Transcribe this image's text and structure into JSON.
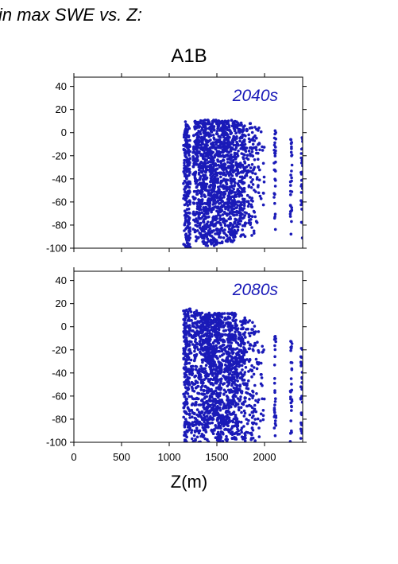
{
  "figure": {
    "title": "in max SWE vs. Z:",
    "scenario": "A1B",
    "xlabel": "Z(m)"
  },
  "chart_data": [
    {
      "type": "scatter",
      "panel_label": "2040s",
      "color": "#1a1ab8",
      "xlim": [
        0,
        2400
      ],
      "ylim": [
        -100,
        48
      ],
      "yticks": [
        40,
        20,
        0,
        -20,
        -40,
        -60,
        -80,
        -100
      ],
      "xticks": [
        0,
        500,
        1000,
        1500,
        2000
      ],
      "show_xtick_labels": false,
      "grid": false,
      "clusters": [
        {
          "x": [
            1150,
            1220
          ],
          "y": [
            -100,
            10
          ],
          "n": 220
        },
        {
          "x": [
            1250,
            1320
          ],
          "y": [
            -95,
            10
          ],
          "n": 180
        },
        {
          "x": [
            1320,
            1560
          ],
          "y": [
            -98,
            11
          ],
          "n": 700
        },
        {
          "x": [
            1560,
            1700
          ],
          "y": [
            -95,
            11
          ],
          "n": 380
        },
        {
          "x": [
            1700,
            1800
          ],
          "y": [
            -90,
            10
          ],
          "n": 200
        },
        {
          "x": [
            1800,
            1900
          ],
          "y": [
            -90,
            9
          ],
          "n": 90
        },
        {
          "x": [
            1900,
            2000
          ],
          "y": [
            -85,
            8
          ],
          "n": 40
        },
        {
          "x": [
            2100,
            2120
          ],
          "y": [
            -92,
            5
          ],
          "n": 30
        },
        {
          "x": [
            2270,
            2290
          ],
          "y": [
            -90,
            -2
          ],
          "n": 30
        },
        {
          "x": [
            2380,
            2400
          ],
          "y": [
            -92,
            -2
          ],
          "n": 30
        }
      ]
    },
    {
      "type": "scatter",
      "panel_label": "2080s",
      "color": "#1a1ab8",
      "xlim": [
        0,
        2400
      ],
      "ylim": [
        -100,
        48
      ],
      "yticks": [
        40,
        20,
        0,
        -20,
        -40,
        -60,
        -80,
        -100
      ],
      "xticks": [
        0,
        500,
        1000,
        1500,
        2000
      ],
      "xtick_labels": [
        "0",
        "500",
        "1000",
        "1500",
        "2000"
      ],
      "show_xtick_labels": true,
      "grid": false,
      "clusters": [
        {
          "x": [
            1150,
            1220
          ],
          "y": [
            -100,
            16
          ],
          "n": 220
        },
        {
          "x": [
            1230,
            1330
          ],
          "y": [
            -100,
            14
          ],
          "n": 200
        },
        {
          "x": [
            1330,
            1550
          ],
          "y": [
            -100,
            12
          ],
          "n": 700
        },
        {
          "x": [
            1550,
            1700
          ],
          "y": [
            -100,
            12
          ],
          "n": 380
        },
        {
          "x": [
            1700,
            1800
          ],
          "y": [
            -100,
            8
          ],
          "n": 200
        },
        {
          "x": [
            1800,
            1900
          ],
          "y": [
            -100,
            6
          ],
          "n": 90
        },
        {
          "x": [
            1900,
            2000
          ],
          "y": [
            -100,
            2
          ],
          "n": 40
        },
        {
          "x": [
            2100,
            2120
          ],
          "y": [
            -100,
            -5
          ],
          "n": 30
        },
        {
          "x": [
            2270,
            2290
          ],
          "y": [
            -100,
            -12
          ],
          "n": 30
        },
        {
          "x": [
            2380,
            2400
          ],
          "y": [
            -100,
            -18
          ],
          "n": 30
        }
      ]
    }
  ]
}
